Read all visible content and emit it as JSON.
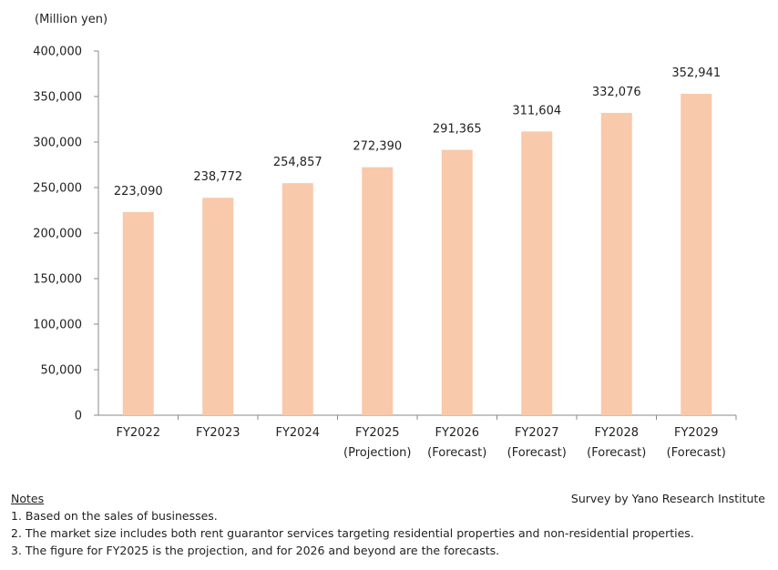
{
  "chart_data": {
    "type": "bar",
    "ylabel": "(Million yen)",
    "ylim": [
      0,
      400000
    ],
    "yticks": [
      0,
      50000,
      100000,
      150000,
      200000,
      250000,
      300000,
      350000,
      400000
    ],
    "ytick_labels": [
      "0",
      "50,000",
      "100,000",
      "150,000",
      "200,000",
      "250,000",
      "300,000",
      "350,000",
      "400,000"
    ],
    "categories": [
      {
        "label": "FY2022",
        "sub": ""
      },
      {
        "label": "FY2023",
        "sub": ""
      },
      {
        "label": "FY2024",
        "sub": ""
      },
      {
        "label": "FY2025",
        "sub": "(Projection)"
      },
      {
        "label": "FY2026",
        "sub": "(Forecast)"
      },
      {
        "label": "FY2027",
        "sub": "(Forecast)"
      },
      {
        "label": "FY2028",
        "sub": "(Forecast)"
      },
      {
        "label": "FY2029",
        "sub": "(Forecast)"
      }
    ],
    "values": [
      223090,
      238772,
      254857,
      272390,
      291365,
      311604,
      332076,
      352941
    ],
    "value_labels": [
      "223,090",
      "238,772",
      "254,857",
      "272,390",
      "291,365",
      "311,604",
      "332,076",
      "352,941"
    ],
    "bar_color": "#f8c9aa",
    "axis_color": "#888888",
    "grid": false
  },
  "notes": {
    "heading": "Notes",
    "items": [
      "1. Based on the sales of businesses.",
      "2. The market size includes both rent guarantor services targeting residential properties and non-residential properties.",
      "3. The figure for FY2025 is the projection, and for 2026 and beyond are the forecasts."
    ]
  },
  "source": "Survey by Yano Research Institute"
}
